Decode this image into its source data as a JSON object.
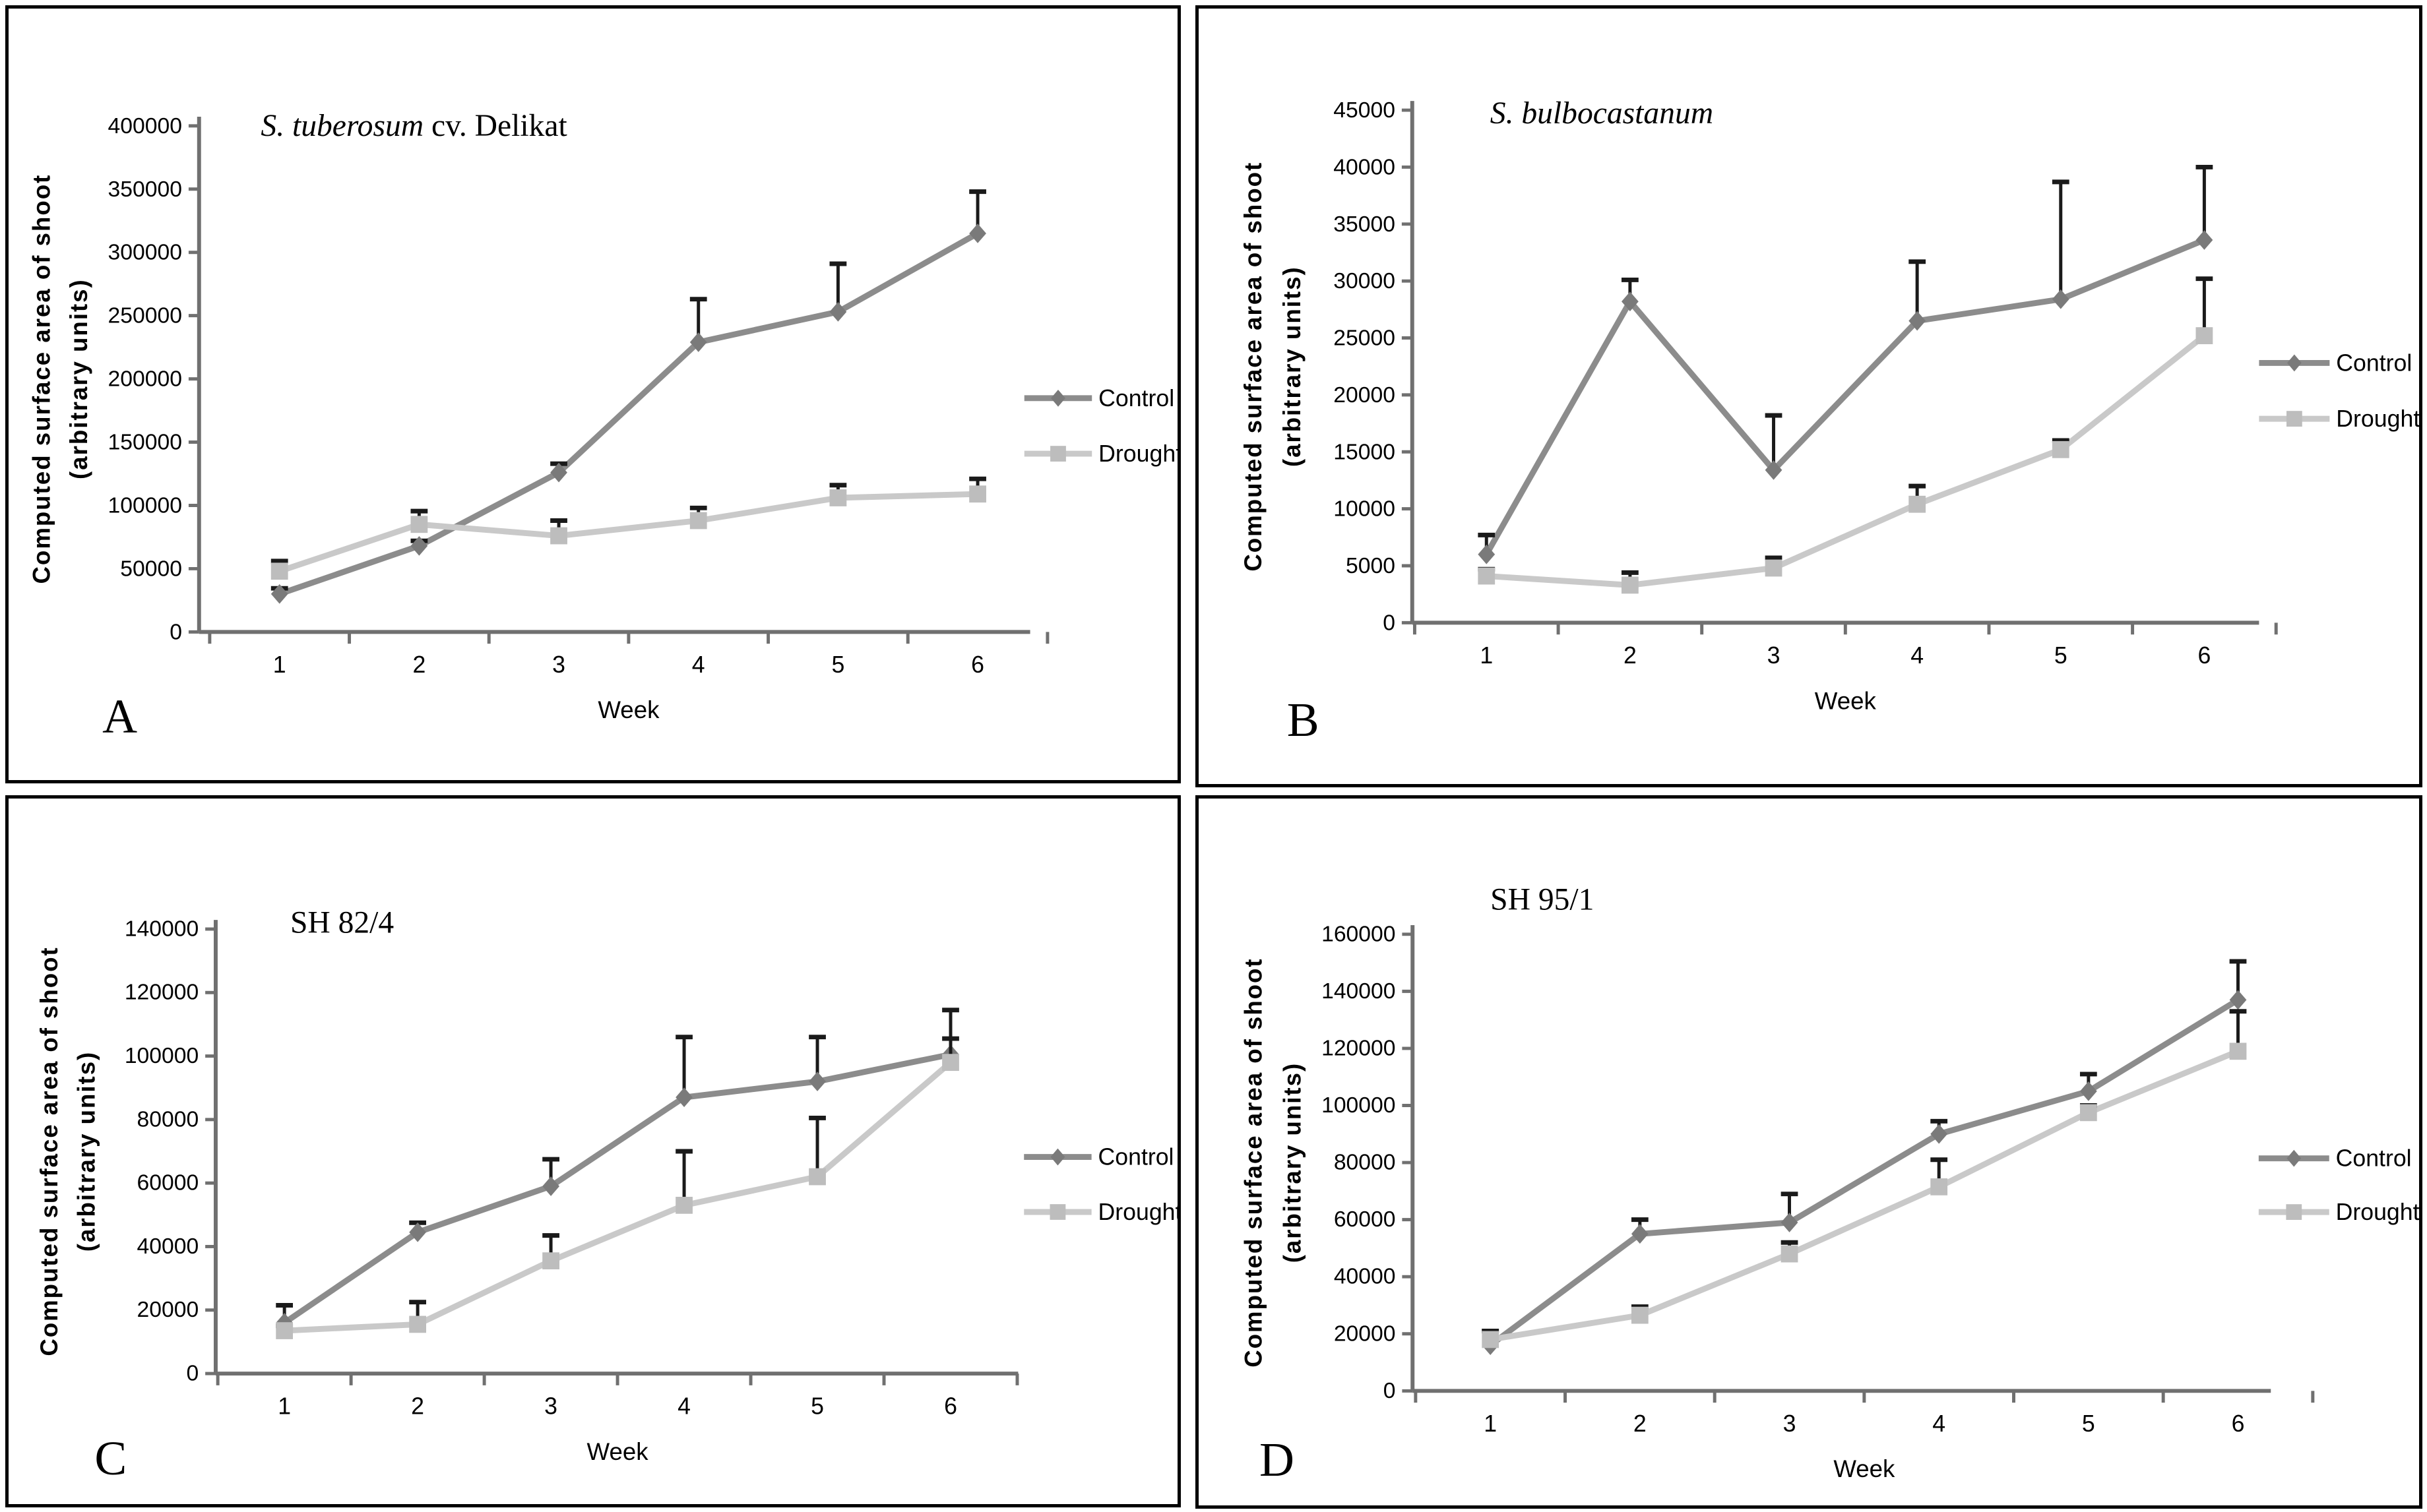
{
  "figure": {
    "description": "Four-panel line chart figure comparing shoot surface area growth of potato genotypes under control and drought conditions",
    "xlabel": "Week",
    "ylabel_line1": "Computed surface area of shoot",
    "ylabel_line2": "(arbitrary units)",
    "legend": {
      "control": "Control",
      "drought": "Drought"
    },
    "colors": {
      "control_line": "#8c8c8c",
      "control_marker": "#7a7a7a",
      "drought_line": "#c9c9c9",
      "drought_marker": "#bdbdbd",
      "error_bar": "#1a1a1a",
      "axis": "#707070",
      "text": "#000000",
      "panel_border": "#000000",
      "background": "#ffffff"
    }
  },
  "chart_data": [
    {
      "panel_letter": "A",
      "type": "line",
      "title_parts": [
        {
          "text": "S. tuberosum",
          "italic": true
        },
        {
          "text": " cv. Delikat",
          "italic": false
        }
      ],
      "xlabel": "Week",
      "ylabel": [
        "Computed surface area of shoot",
        "(arbitrary units)"
      ],
      "x": [
        1,
        2,
        3,
        4,
        5,
        6
      ],
      "ylim": [
        0,
        400000
      ],
      "ytick_step": 50000,
      "ytick_labels": [
        "0",
        "50000",
        "100000",
        "150000",
        "200000",
        "250000",
        "300000",
        "350000",
        "400000"
      ],
      "grid": false,
      "legend_position": "right",
      "series": [
        {
          "name": "Control",
          "marker": "diamond",
          "values": [
            30000,
            68000,
            126000,
            229000,
            253000,
            315000
          ],
          "err_plus": [
            4500,
            4000,
            7000,
            34000,
            38000,
            33000
          ]
        },
        {
          "name": "Drought",
          "marker": "square",
          "values": [
            48000,
            85000,
            76000,
            88000,
            106000,
            109000
          ],
          "err_plus": [
            8000,
            10500,
            12000,
            10000,
            10000,
            12000
          ]
        }
      ]
    },
    {
      "panel_letter": "B",
      "type": "line",
      "title_parts": [
        {
          "text": "S. bulbocastanum",
          "italic": true
        }
      ],
      "xlabel": "Week",
      "ylabel": [
        "Computed surface area of shoot",
        "(arbitrary units)"
      ],
      "x": [
        1,
        2,
        3,
        4,
        5,
        6
      ],
      "ylim": [
        0,
        45000
      ],
      "ytick_step": 5000,
      "ytick_labels": [
        "0",
        "5000",
        "10000",
        "15000",
        "20000",
        "25000",
        "30000",
        "35000",
        "40000",
        "45000"
      ],
      "grid": false,
      "legend_position": "right",
      "series": [
        {
          "name": "Control",
          "marker": "diamond",
          "values": [
            6000,
            28200,
            13400,
            26500,
            28400,
            33600
          ],
          "err_plus": [
            1700,
            1900,
            4800,
            5200,
            10300,
            6400
          ]
        },
        {
          "name": "Drought",
          "marker": "square",
          "values": [
            4100,
            3300,
            4800,
            10400,
            15200,
            25200
          ],
          "err_plus": [
            600,
            1100,
            900,
            1600,
            800,
            5000
          ]
        }
      ]
    },
    {
      "panel_letter": "C",
      "type": "line",
      "title_parts": [
        {
          "text": "SH 82/4",
          "italic": false
        }
      ],
      "xlabel": "Week",
      "ylabel": [
        "Computed surface area of shoot",
        "(arbitrary units)"
      ],
      "x": [
        1,
        2,
        3,
        4,
        5,
        6
      ],
      "ylim": [
        0,
        140000
      ],
      "ytick_step": 20000,
      "ytick_labels": [
        "0",
        "20000",
        "40000",
        "60000",
        "80000",
        "100000",
        "120000",
        "140000"
      ],
      "grid": false,
      "legend_position": "right",
      "series": [
        {
          "name": "Control",
          "marker": "diamond",
          "values": [
            16000,
            44500,
            59000,
            87000,
            92000,
            100500
          ],
          "err_plus": [
            5500,
            3000,
            8500,
            19000,
            14000,
            14000
          ]
        },
        {
          "name": "Drought",
          "marker": "square",
          "values": [
            13500,
            15500,
            35500,
            53000,
            62000,
            98000
          ],
          "err_plus": [
            1500,
            7000,
            8000,
            17000,
            18500,
            7500
          ]
        }
      ]
    },
    {
      "panel_letter": "D",
      "type": "line",
      "title_parts": [
        {
          "text": "SH 95/1",
          "italic": false
        }
      ],
      "xlabel": "Week",
      "ylabel": [
        "Computed surface area of shoot",
        "(arbitrary units)"
      ],
      "x": [
        1,
        2,
        3,
        4,
        5,
        6
      ],
      "ylim": [
        0,
        160000
      ],
      "ytick_step": 20000,
      "ytick_labels": [
        "0",
        "20000",
        "40000",
        "60000",
        "80000",
        "100000",
        "120000",
        "140000",
        "160000"
      ],
      "grid": false,
      "legend_position": "right",
      "series": [
        {
          "name": "Control",
          "marker": "diamond",
          "values": [
            16000,
            55000,
            59000,
            90000,
            105000,
            137000
          ],
          "err_plus": [
            5000,
            5000,
            10000,
            4500,
            6000,
            13500
          ]
        },
        {
          "name": "Drought",
          "marker": "square",
          "values": [
            18000,
            26500,
            48000,
            71500,
            97500,
            119000
          ],
          "err_plus": [
            3000,
            3000,
            4000,
            9500,
            2500,
            14000
          ]
        }
      ]
    }
  ]
}
